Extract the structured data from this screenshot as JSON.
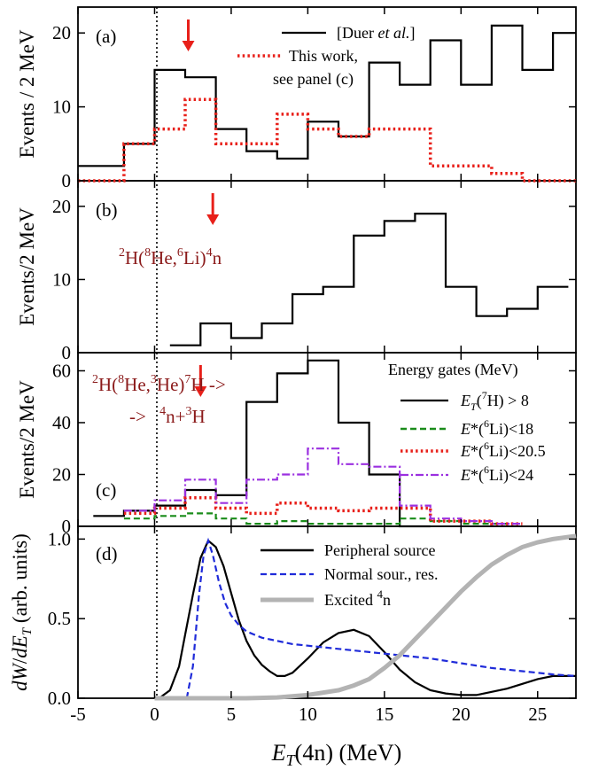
{
  "figure": {
    "xlabel": "E_T(4n) (MeV)",
    "xlabel_parts": {
      "E": "E",
      "T": "T",
      "rest": "(4n)  (MeV)"
    },
    "x_ticks": [
      "-5",
      "0",
      "5",
      "10",
      "15",
      "20",
      "25"
    ]
  },
  "panels": {
    "a": {
      "letter": "(a)",
      "ylabel": "Events / 2 MeV",
      "legend": {
        "duer_pre": "[Duer ",
        "duer_it": "et al.",
        "duer_post": "]",
        "this_work": "This work,",
        "see_panel": "see panel (c)"
      }
    },
    "b": {
      "letter": "(b)",
      "ylabel": "Events/2 MeV",
      "reaction": {
        "p1": "2",
        "p2": "H(",
        "p3": "8",
        "p4": "He,",
        "p5": "6",
        "p6": "Li)",
        "p7": "4",
        "p8": "n"
      }
    },
    "c": {
      "letter": "(c)",
      "ylabel": "Events/2 MeV",
      "reaction1": {
        "p1": "2",
        "p2": "H(",
        "p3": "8",
        "p4": "He,",
        "p5": "3",
        "p6": "He)",
        "p7": "7",
        "p8": "H ->"
      },
      "reaction2": {
        "p1": "->  ",
        "p2": "4",
        "p3": "n+",
        "p4": "3",
        "p5": "H"
      },
      "legend_title": "Energy gates (MeV)",
      "legend_items": [
        {
          "pre": "E",
          "sub": "T",
          "mid": "(",
          "sup": "7",
          "post": "H) > 8"
        },
        {
          "pre": "E",
          "sub": "",
          "mid": "*(",
          "sup": "6",
          "post": "Li)<18"
        },
        {
          "pre": "E",
          "sub": "",
          "mid": "*(",
          "sup": "6",
          "post": "Li)<20.5"
        },
        {
          "pre": "E",
          "sub": "",
          "mid": "*(",
          "sup": "6",
          "post": "Li)<24"
        }
      ]
    },
    "d": {
      "letter": "(d)",
      "ylabel": "dW/dE_T (arb. units)",
      "ylabel_parts": {
        "a": "dW",
        "b": "/",
        "c": "dE",
        "d": "T",
        "e": " (arb. units)"
      },
      "legend": {
        "peripheral": "Peripheral source",
        "normal": "Normal sour., res.",
        "excited": "Excited ",
        "excited_sup": "4",
        "excited_post": "n"
      }
    }
  },
  "colors": {
    "black": "#000000",
    "red": "#e8201a",
    "green": "#1a8c1a",
    "purple": "#9b30e0",
    "blue": "#1f2bd9",
    "gray": "#b3b3b3",
    "reaction": "#8b1a1a"
  },
  "chart_data": [
    {
      "panel": "a",
      "type": "line",
      "drawstyle": "steps",
      "xlim": [
        -5,
        27.5
      ],
      "ylim": [
        0,
        23.5
      ],
      "yticks": [
        0,
        10,
        20
      ],
      "arrow_at_x": 2.2,
      "series": [
        {
          "name": "[Duer et al.]",
          "color": "#000000",
          "style": "solid",
          "edges": [
            -5,
            -2,
            0,
            2,
            4,
            6,
            8,
            10,
            12,
            14,
            16,
            18,
            20,
            22,
            24,
            26,
            28
          ],
          "values": [
            2,
            5,
            15,
            14,
            7,
            4,
            3,
            8,
            6,
            16,
            13,
            19,
            13,
            21,
            15,
            20
          ]
        },
        {
          "name": "This work, see panel (c)",
          "color": "#e8201a",
          "style": "dotted",
          "edges": [
            -5,
            -2,
            0,
            2,
            4,
            6,
            8,
            10,
            12,
            14,
            16,
            18,
            20,
            22,
            24,
            26,
            28
          ],
          "values": [
            0,
            5,
            7,
            11,
            5,
            5,
            9,
            7,
            6,
            7,
            7,
            2,
            2,
            1,
            0,
            0
          ]
        }
      ]
    },
    {
      "panel": "b",
      "type": "line",
      "drawstyle": "steps",
      "xlim": [
        -5,
        27.5
      ],
      "ylim": [
        0,
        23.5
      ],
      "yticks": [
        0,
        10,
        20
      ],
      "arrow_at_x": 3.8,
      "series": [
        {
          "color": "#000000",
          "style": "solid",
          "edges": [
            1,
            3,
            5,
            7,
            9,
            11,
            13,
            15,
            17,
            19,
            21,
            23,
            25,
            27
          ],
          "values": [
            1,
            4,
            2,
            4,
            8,
            9,
            16,
            18,
            19,
            9,
            5,
            6,
            9
          ]
        }
      ]
    },
    {
      "panel": "c",
      "type": "line",
      "drawstyle": "steps",
      "xlim": [
        -5,
        27.5
      ],
      "ylim": [
        0,
        67
      ],
      "yticks": [
        0,
        20,
        40,
        60
      ],
      "arrow_at_x": 3.0,
      "series": [
        {
          "name": "E_T(7H) > 8",
          "color": "#000000",
          "style": "solid",
          "edges": [
            -4,
            -2,
            0,
            2,
            4,
            6,
            8,
            10,
            12,
            14,
            16,
            18
          ],
          "values": [
            4,
            6,
            8,
            14,
            12,
            48,
            59,
            64,
            40,
            20,
            0
          ]
        },
        {
          "name": "E*(6Li)<18",
          "color": "#1a8c1a",
          "style": "dashed",
          "edges": [
            -2,
            0,
            2,
            4,
            6,
            8,
            10,
            12,
            14,
            16,
            18,
            20,
            22,
            24
          ],
          "values": [
            3,
            4,
            5,
            3,
            1,
            2,
            1,
            1,
            1,
            3,
            2,
            1,
            1
          ]
        },
        {
          "name": "E*(6Li)<20.5",
          "color": "#e8201a",
          "style": "dotted",
          "edges": [
            -2,
            0,
            2,
            4,
            6,
            8,
            10,
            12,
            14,
            16,
            18,
            20,
            22,
            24
          ],
          "values": [
            5,
            7,
            11,
            7,
            5,
            9,
            7,
            6,
            7,
            7,
            2,
            2,
            1
          ]
        },
        {
          "name": "E*(6Li)<24",
          "color": "#9b30e0",
          "style": "dashdot",
          "edges": [
            -2,
            0,
            2,
            4,
            6,
            8,
            10,
            12,
            14,
            16,
            18,
            20,
            22,
            24
          ],
          "values": [
            6,
            10,
            18,
            9,
            18,
            20,
            30,
            24,
            23,
            8,
            3,
            2,
            1
          ]
        }
      ]
    },
    {
      "panel": "d",
      "type": "line",
      "xlim": [
        -5,
        27.5
      ],
      "ylim": [
        0,
        1.08
      ],
      "yticks": [
        0.0,
        0.5,
        1.0
      ],
      "series": [
        {
          "name": "Peripheral source",
          "color": "#000000",
          "style": "solid",
          "x": [
            0.3,
            1.0,
            1.6,
            2.0,
            2.5,
            3.0,
            3.5,
            4.0,
            4.5,
            5.0,
            5.5,
            6.0,
            6.5,
            7.0,
            7.5,
            8.0,
            8.5,
            9.0,
            10.0,
            11.0,
            12.0,
            13.0,
            14.0,
            15.0,
            16.0,
            17.0,
            18.0,
            19.0,
            20.0,
            21.0,
            22.0,
            23.0,
            24.0,
            25.0,
            26.0,
            27.5
          ],
          "y": [
            0.0,
            0.05,
            0.2,
            0.4,
            0.65,
            0.88,
            0.99,
            0.95,
            0.83,
            0.66,
            0.49,
            0.36,
            0.27,
            0.21,
            0.17,
            0.14,
            0.14,
            0.16,
            0.25,
            0.35,
            0.41,
            0.43,
            0.39,
            0.29,
            0.18,
            0.1,
            0.05,
            0.03,
            0.02,
            0.02,
            0.04,
            0.06,
            0.09,
            0.12,
            0.14,
            0.14
          ]
        },
        {
          "name": "Normal sour., res.",
          "color": "#1f2bd9",
          "style": "dashed",
          "x": [
            2.1,
            2.5,
            2.9,
            3.2,
            3.5,
            3.8,
            4.2,
            4.6,
            5.0,
            5.5,
            6.0,
            7.0,
            8.0,
            9.0,
            10.0,
            12.0,
            14.0,
            16.0,
            18.0,
            20.0,
            22.0,
            24.0,
            26.0,
            27.5
          ],
          "y": [
            0.0,
            0.2,
            0.65,
            0.9,
            0.99,
            0.9,
            0.73,
            0.6,
            0.52,
            0.46,
            0.42,
            0.38,
            0.36,
            0.34,
            0.33,
            0.31,
            0.29,
            0.27,
            0.25,
            0.22,
            0.19,
            0.17,
            0.15,
            0.14
          ]
        },
        {
          "name": "Excited 4n",
          "color": "#b3b3b3",
          "style": "solid",
          "x": [
            0.0,
            4.0,
            6.0,
            8.0,
            10.0,
            12.0,
            13.0,
            14.0,
            15.0,
            16.0,
            17.0,
            18.0,
            19.0,
            20.0,
            21.0,
            22.0,
            23.0,
            24.0,
            25.0,
            26.0,
            27.5
          ],
          "y": [
            0.0,
            0.0,
            0.0,
            0.005,
            0.02,
            0.05,
            0.08,
            0.12,
            0.19,
            0.27,
            0.37,
            0.47,
            0.57,
            0.67,
            0.76,
            0.84,
            0.9,
            0.95,
            0.98,
            1.0,
            1.02
          ]
        }
      ]
    }
  ]
}
